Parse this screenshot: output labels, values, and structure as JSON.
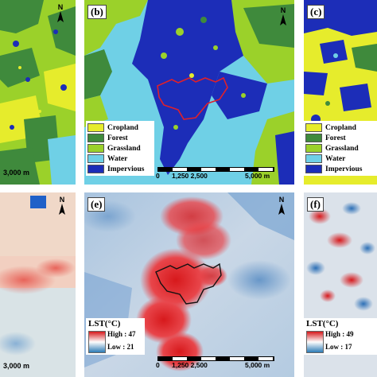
{
  "panels": {
    "b": {
      "label": "(b)"
    },
    "c": {
      "label": "(c)"
    },
    "e": {
      "label": "(e)"
    },
    "f": {
      "label": "(f)"
    }
  },
  "north_label": "N",
  "land_cover_legend": {
    "items": [
      {
        "label": "Cropland",
        "color": "#e6ec2c"
      },
      {
        "label": "Forest",
        "color": "#3f8a3c"
      },
      {
        "label": "Grassland",
        "color": "#9bd12a"
      },
      {
        "label": "Water",
        "color": "#6fd0e6"
      },
      {
        "label": "Impervious",
        "color": "#1c2db8"
      }
    ]
  },
  "lst_legend_e": {
    "title": "LST(°C)",
    "high": "High : 47",
    "low": "Low : 21"
  },
  "lst_legend_f": {
    "title": "LST(°C)",
    "high": "High : 49",
    "low": "Low : 17"
  },
  "scalebars": {
    "a_left_end": "3,000 m",
    "d_left_end": "3,000 m",
    "b": {
      "zero": "0",
      "mid": "1,250 2,500",
      "end": "5,000 m"
    },
    "e": {
      "zero": "0",
      "mid": "1,250 2,500",
      "end": "5,000 m"
    }
  },
  "colors": {
    "impervious": "#1c2db8",
    "water": "#6fd0e6",
    "grassland": "#9bd12a",
    "cropland": "#e6ec2c",
    "forest": "#3f8a3c",
    "lst_high": "#d7191c",
    "lst_low": "#2c7bb6",
    "study_boundary": "#e0202a"
  }
}
